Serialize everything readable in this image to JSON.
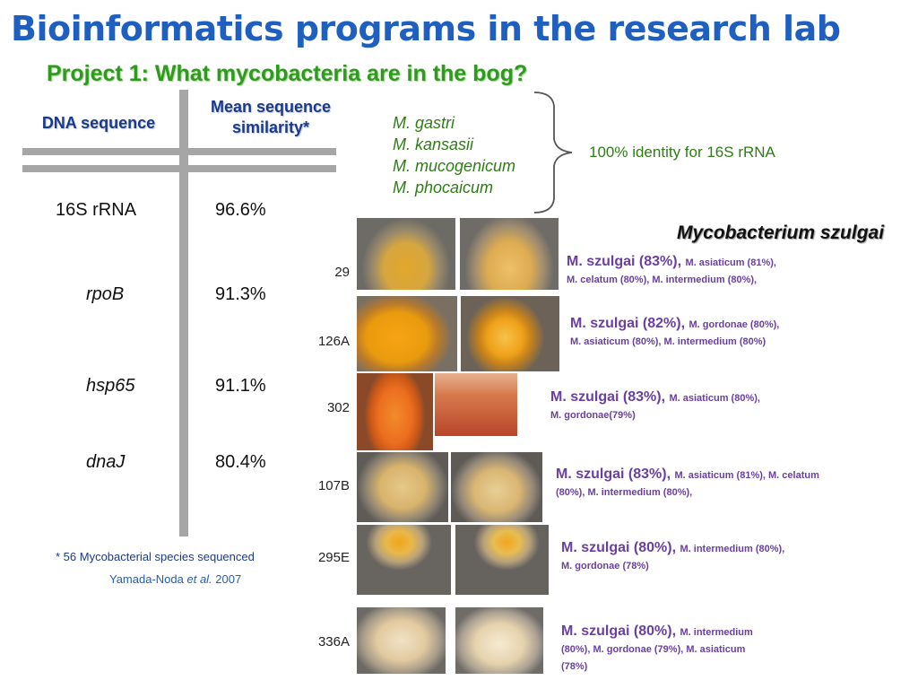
{
  "title": "Bioinformatics programs in the research lab",
  "subtitle": "Project 1:  What mycobacteria are in the bog?",
  "table": {
    "col1_header": "DNA sequence",
    "col2_header": "Mean sequence similarity*",
    "rows": [
      {
        "gene": "16S rRNA",
        "value": "96.6%"
      },
      {
        "gene": "rpoB",
        "value": "91.3%"
      },
      {
        "gene": "hsp65",
        "value": "91.1%"
      },
      {
        "gene": "dnaJ",
        "value": "80.4%"
      }
    ]
  },
  "footnote": "* 56 Mycobacterial species sequenced",
  "citation": {
    "author": "Yamada-Noda ",
    "etal": "et al.",
    "year": " 2007"
  },
  "species_list": [
    "M. gastri",
    "M. kansasii",
    "M. mucogenicum",
    "M. phocaicum"
  ],
  "identity_note": "100% identity for 16S rRNA",
  "figure_title": "Mycobacterium szulgai",
  "strains": [
    {
      "id": "29",
      "top_match": "M. szulgai (83%),",
      "others": "M. asiaticum (81%),",
      "others2": "M. celatum (80%), M. intermedium (80%),"
    },
    {
      "id": "126A",
      "top_match": "M. szulgai (82%),",
      "others": "M. gordonae (80%),",
      "others2": "M. asiaticum (80%), M. intermedium (80%)"
    },
    {
      "id": "302",
      "top_match": "M. szulgai (83%),",
      "others": "M. asiaticum (80%),",
      "others2": "M. gordonae(79%)"
    },
    {
      "id": "107B",
      "top_match": "M. szulgai (83%),",
      "others": "M. asiaticum (81%), M. celatum",
      "others2": "(80%), M. intermedium (80%),"
    },
    {
      "id": "295E",
      "top_match": "M. szulgai (80%),",
      "others": "M. intermedium (80%),",
      "others2": "M. gordonae (78%)"
    },
    {
      "id": "336A",
      "top_match": "M. szulgai (80%),",
      "others": "M. intermedium",
      "others2": "(80%), M. gordonae (79%), M. asiaticum",
      "others3": "(78%)"
    }
  ],
  "colors": {
    "title": "#1f5fbf",
    "subtitle": "#2e9a1e",
    "species": "#2e7d14",
    "strain_desc": "#6a3fa0"
  }
}
